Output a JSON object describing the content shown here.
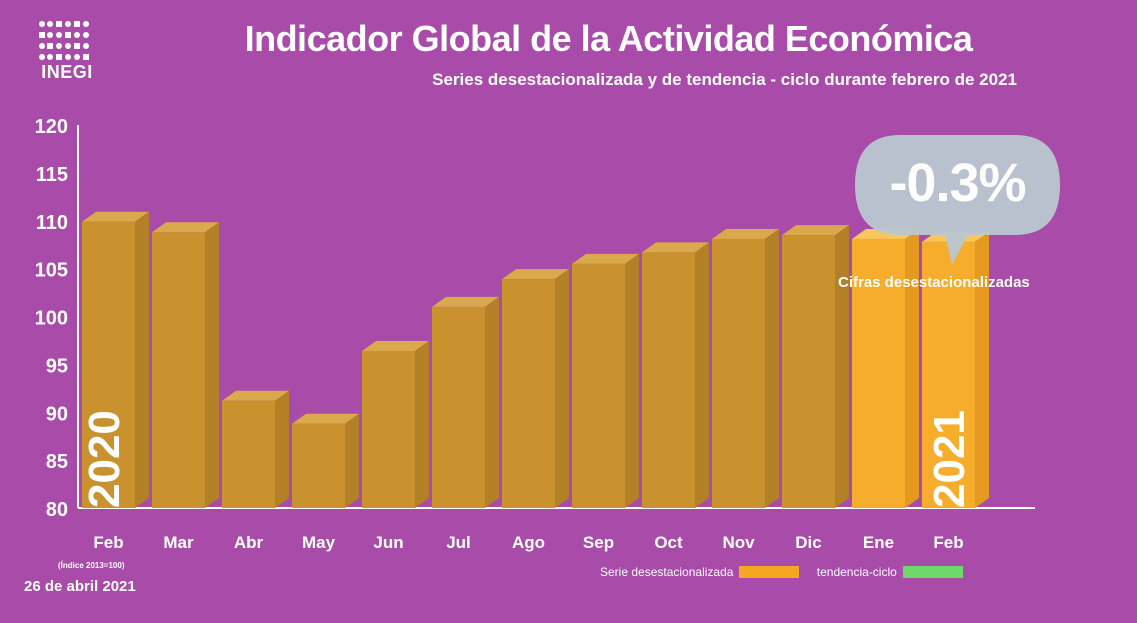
{
  "logo": {
    "text": "INEGI"
  },
  "title": "Indicador Global de la Actividad Económica",
  "subtitle": "Series desestacionalizada y de tendencia - ciclo durante febrero de 2021",
  "callout": {
    "value": "-0.3%",
    "label": "Cifras desestacionalizadas"
  },
  "years": {
    "start": "2020",
    "end": "2021"
  },
  "notes": {
    "index": "(Índice 2013=100)",
    "date": "26 de abril 2021"
  },
  "legend": [
    {
      "label": "Serie desestacionalizada",
      "color": "#f5a623"
    },
    {
      "label": "tendencia-ciclo",
      "color": "#6fd86a"
    }
  ],
  "colors": {
    "background": "#a94ba8",
    "bar_2020": "#c9922e",
    "bar_2021": "#f6ad2b",
    "callout": "#b9c7d0"
  },
  "chart_data": {
    "type": "bar",
    "title": "Indicador Global de la Actividad Económica",
    "subtitle": "Series desestacionalizada y de tendencia - ciclo durante febrero de 2021",
    "categories": [
      "Feb",
      "Mar",
      "Abr",
      "May",
      "Jun",
      "Jul",
      "Ago",
      "Sep",
      "Oct",
      "Nov",
      "Dic",
      "Ene",
      "Feb"
    ],
    "series": [
      {
        "name": "Serie desestacionalizada",
        "values": [
          109.9,
          108.8,
          91.2,
          88.8,
          96.4,
          101.0,
          103.9,
          105.5,
          106.7,
          108.1,
          108.5,
          108.1,
          107.8
        ]
      }
    ],
    "years": [
      "2020",
      "2020",
      "2020",
      "2020",
      "2020",
      "2020",
      "2020",
      "2020",
      "2020",
      "2020",
      "2020",
      "2021",
      "2021"
    ],
    "ylim": [
      80,
      120
    ],
    "yticks": [
      80,
      85,
      90,
      95,
      100,
      105,
      110,
      115,
      120
    ],
    "xlabel": "",
    "ylabel": "",
    "grid": false,
    "legend": "bottom-right"
  }
}
